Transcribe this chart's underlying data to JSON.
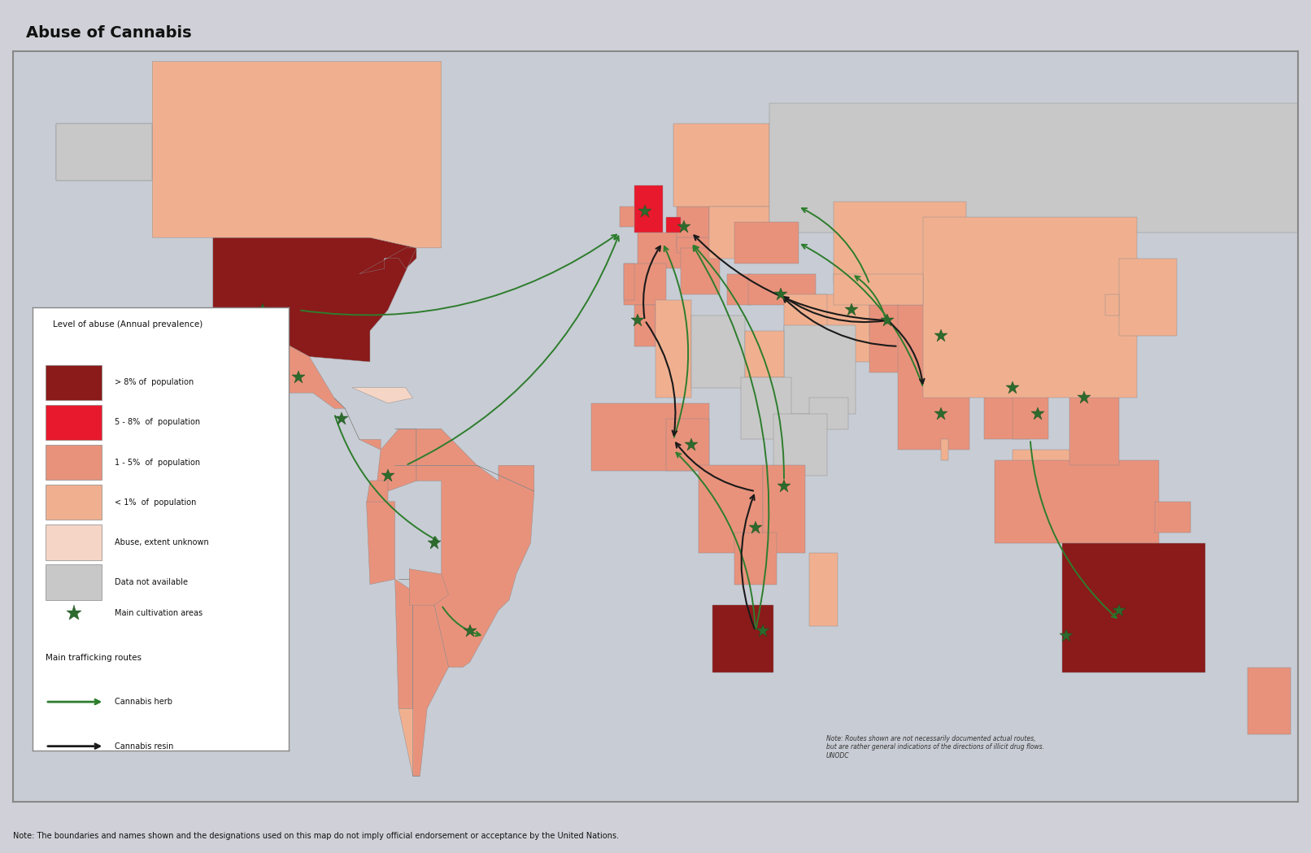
{
  "title": "Abuse of Cannabis",
  "footnote": "Note: The boundaries and names shown and the designations used on this map do not imply official endorsement or acceptance by the United Nations.",
  "note_routes": "Note: Routes shown are not necessarily documented actual routes,\nbut are rather general indications of the directions of illicit drug flows.\nUNODC",
  "background_color": "#c8ccd4",
  "map_border_color": "#888888",
  "legend_colors": {
    "gt8": "#8B1A1A",
    "5to8": "#E8192C",
    "1to5": "#E8927C",
    "lt1": "#F0B090",
    "unknown": "#F5D5C5",
    "no_data": "#C8C8C8"
  },
  "legend_labels": {
    "gt8": "> 8% of  population",
    "5to8": "5 - 8%  of  population",
    "1to5": "1 - 5%  of  population",
    "lt1": "< 1%  of  population",
    "unknown": "Abuse, extent unknown",
    "no_data": "Data not available"
  },
  "leaf_color": "#2D6B2D",
  "arrow_herb_color": "#2D7D2D",
  "arrow_resin_color": "#1A1A1A",
  "title_fontsize": 14,
  "legend_title": "Level of abuse (Annual prevalence)",
  "legend_cultivation": "Main cultivation areas",
  "legend_trafficking": "Main trafficking routes",
  "legend_herb": "Cannabis herb",
  "legend_resin": "Cannabis resin"
}
